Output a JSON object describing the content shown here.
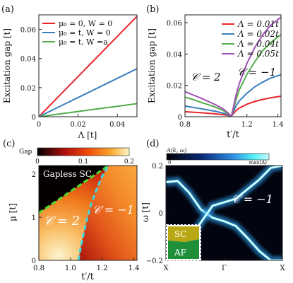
{
  "chart_data": [
    {
      "panel": "(a)",
      "type": "line",
      "xlabel": "Λ [t]",
      "ylabel": "Excitation gap [t]",
      "xlim": [
        0,
        0.05
      ],
      "ylim": [
        0,
        0.07
      ],
      "xticks": [
        {
          "v": 0,
          "label": "0"
        },
        {
          "v": 0.02,
          "label": "0.02"
        },
        {
          "v": 0.04,
          "label": "0.04"
        }
      ],
      "yticks": [
        {
          "v": 0,
          "label": "0"
        },
        {
          "v": 0.02,
          "label": "0.02"
        },
        {
          "v": 0.04,
          "label": "0.04"
        },
        {
          "v": 0.06,
          "label": "0.06"
        }
      ],
      "legend_position": "top-left",
      "series": [
        {
          "name": "μ₀ = 0, W = 0",
          "color": "#e8262a",
          "x": [
            0,
            0.01,
            0.02,
            0.03,
            0.04,
            0.05
          ],
          "values": [
            0,
            0.0138,
            0.0276,
            0.0414,
            0.0552,
            0.069
          ]
        },
        {
          "name": "μ₀ = t, W = 0",
          "color": "#3c7fbe",
          "x": [
            0,
            0.01,
            0.02,
            0.03,
            0.04,
            0.05
          ],
          "values": [
            0,
            0.0066,
            0.0132,
            0.0198,
            0.0264,
            0.033
          ]
        },
        {
          "name": "μ₀ = t, W =a",
          "color": "#52ac4a",
          "x": [
            0,
            0.01,
            0.02,
            0.03,
            0.04,
            0.05
          ],
          "values": [
            0,
            0.0018,
            0.0036,
            0.0054,
            0.0072,
            0.009
          ]
        }
      ]
    },
    {
      "panel": "(b)",
      "type": "line",
      "xlabel": "t′/t",
      "ylabel": "Excitation gap [t]",
      "xlim": [
        0.8,
        1.42
      ],
      "ylim": [
        0,
        0.065
      ],
      "xticks": [
        {
          "v": 0.8,
          "label": "0.8"
        },
        {
          "v": 1.2,
          "label": "1.2"
        },
        {
          "v": 1.4,
          "label": "1.4"
        }
      ],
      "yticks": [
        {
          "v": 0,
          "label": "0"
        },
        {
          "v": 0.02,
          "label": "0.02"
        },
        {
          "v": 0.04,
          "label": "0.04"
        },
        {
          "v": 0.06,
          "label": "0.06"
        }
      ],
      "legend_position": "top-right",
      "annotations": [
        {
          "text": "𝒞 = 2",
          "x": 0.83,
          "y": 0.021
        },
        {
          "text": "𝒞 = −1",
          "x": 1.23,
          "y": 0.027
        }
      ],
      "series": [
        {
          "name": "Λ = 0.01t",
          "color": "#e8262a",
          "x": [
            0.8,
            0.85,
            0.9,
            0.95,
            1.0,
            1.05,
            1.1,
            1.13,
            1.15,
            1.2,
            1.25,
            1.3,
            1.35,
            1.4,
            1.42
          ],
          "values": [
            0.0032,
            0.0029,
            0.0026,
            0.0022,
            0.0018,
            0.0013,
            0.0004,
            0.004,
            0.0055,
            0.008,
            0.0097,
            0.011,
            0.012,
            0.0128,
            0.0131
          ]
        },
        {
          "name": "Λ = 0.02t",
          "color": "#3c7fbe",
          "x": [
            0.8,
            0.85,
            0.9,
            0.95,
            1.0,
            1.05,
            1.1,
            1.13,
            1.15,
            1.2,
            1.25,
            1.3,
            1.35,
            1.4,
            1.42
          ],
          "values": [
            0.0068,
            0.006,
            0.0052,
            0.0043,
            0.0034,
            0.0022,
            0.0004,
            0.007,
            0.01,
            0.015,
            0.019,
            0.022,
            0.0245,
            0.0262,
            0.0268
          ]
        },
        {
          "name": "Λ = 0.04t",
          "color": "#52ac4a",
          "x": [
            0.8,
            0.85,
            0.9,
            0.95,
            1.0,
            1.05,
            1.1,
            1.13,
            1.15,
            1.2,
            1.25,
            1.3,
            1.35,
            1.4,
            1.42
          ],
          "values": [
            0.0125,
            0.011,
            0.0093,
            0.0077,
            0.006,
            0.0038,
            0.0004,
            0.011,
            0.017,
            0.027,
            0.035,
            0.042,
            0.047,
            0.051,
            0.0522
          ]
        },
        {
          "name": "Λ = 0.05t",
          "color": "#a050b4",
          "x": [
            0.8,
            0.85,
            0.9,
            0.95,
            1.0,
            1.05,
            1.1,
            1.13,
            1.15,
            1.2,
            1.25,
            1.3,
            1.35,
            1.4,
            1.42
          ],
          "values": [
            0.016,
            0.014,
            0.012,
            0.0098,
            0.0075,
            0.0048,
            0.0004,
            0.014,
            0.021,
            0.034,
            0.044,
            0.052,
            0.058,
            0.062,
            0.0635
          ]
        }
      ]
    },
    {
      "panel": "(c)",
      "type": "heatmap",
      "xlabel": "t′/t",
      "ylabel": "μ [t]",
      "xlim": [
        0.8,
        1.42
      ],
      "ylim": [
        0,
        2.2
      ],
      "xticks": [
        {
          "v": 0.8,
          "label": "0.8"
        },
        {
          "v": 1.0,
          "label": "1.0"
        },
        {
          "v": 1.2,
          "label": "1.2"
        },
        {
          "v": 1.4,
          "label": "1.4"
        }
      ],
      "yticks": [
        {
          "v": 0,
          "label": "0"
        },
        {
          "v": 1,
          "label": "1"
        },
        {
          "v": 2,
          "label": "2"
        }
      ],
      "colorbar": {
        "label": "Gap",
        "ticks": [
          {
            "v": 0,
            "label": "0"
          },
          {
            "v": 0.1,
            "label": "0.1"
          },
          {
            "v": 0.2,
            "label": "0.2"
          }
        ],
        "colormap": "hot"
      },
      "regions": [
        {
          "text": "Gapless SC",
          "x": 0.83,
          "y": 1.9
        },
        {
          "text": "𝒞 = 2",
          "x": 0.87,
          "y": 0.65
        },
        {
          "text": "𝒞 = −1",
          "x": 1.15,
          "y": 0.9
        }
      ],
      "boundaries": [
        {
          "name": "gapless boundary",
          "color": "#4ddc2e",
          "x": [
            0.8,
            0.9,
            1.0,
            1.1,
            1.2,
            1.24
          ],
          "values": [
            1.1,
            1.35,
            1.6,
            1.85,
            2.1,
            2.2
          ]
        },
        {
          "name": "topological transition",
          "color": "#3fd6e0",
          "x": [
            1.05,
            1.07,
            1.1,
            1.13,
            1.17,
            1.2,
            1.24
          ],
          "values": [
            0,
            0.4,
            0.9,
            1.3,
            1.7,
            1.95,
            2.2
          ]
        }
      ]
    },
    {
      "panel": "(d)",
      "type": "heatmap",
      "xlabel": "",
      "ylabel": "ω [t]",
      "ylim": [
        -0.2,
        0.2
      ],
      "xticks": [
        {
          "v": 0,
          "label": "X"
        },
        {
          "v": 0.5,
          "label": "Γ"
        },
        {
          "v": 1,
          "label": "X"
        }
      ],
      "yticks": [
        {
          "v": -0.2,
          "label": "−0.2"
        },
        {
          "v": 0,
          "label": "0"
        },
        {
          "v": 0.2,
          "label": "0.2"
        }
      ],
      "colorbar": {
        "label": "A(k, ω)",
        "ticks": [
          {
            "v": 0,
            "label": "0"
          },
          {
            "v": 1,
            "label": "max(A)"
          }
        ],
        "colormap": "blue-cyan"
      },
      "annotations": [
        {
          "text": "𝒞 = −1",
          "x": 0.75,
          "y": 0.06
        }
      ],
      "inset_labels": [
        "SC",
        "AF"
      ],
      "bands": [
        {
          "name": "edge state 1",
          "x": [
            0,
            0.1,
            0.2,
            0.3,
            0.4,
            0.5,
            0.6,
            0.7,
            0.8,
            0.9,
            1.0
          ],
          "values": [
            0.13,
            0.135,
            0.085,
            0.015,
            -0.02,
            -0.035,
            -0.055,
            -0.105,
            -0.16,
            -0.2,
            -0.2
          ]
        },
        {
          "name": "edge state 2",
          "x": [
            0,
            0.1,
            0.2,
            0.3,
            0.4,
            0.5,
            0.6,
            0.7,
            0.8,
            0.9,
            1.0
          ],
          "values": [
            -0.15,
            -0.16,
            -0.11,
            -0.04,
            0.03,
            0.045,
            0.06,
            0.1,
            0.14,
            0.19,
            0.2
          ]
        }
      ]
    }
  ]
}
